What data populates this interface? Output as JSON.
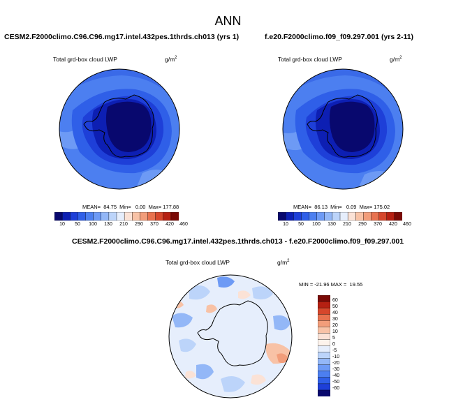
{
  "title": "ANN",
  "unit_base": "g/m",
  "unit_exp": "2",
  "panels": [
    {
      "case": "CESM2.F2000climo.C96.C96.mg17.intel.432pes.1thrds.ch013 (yrs 1)",
      "subtitle": "Total grd-box cloud LWP",
      "stats": "MEAN=  84.75  Min=   0.00  Max= 177.88"
    },
    {
      "case": "f.e20.F2000climo.f09_f09.297.001 (yrs 2-11)",
      "subtitle": "Total grd-box cloud LWP",
      "stats": "MEAN=  86.13  Min=   0.09  Max= 175.02"
    },
    {
      "case": "CESM2.F2000climo.C96.C96.mg17.intel.432pes.1thrds.ch013 - f.e20.F2000climo.f09_f09.297.001",
      "subtitle": "Total grd-box cloud LWP",
      "stats": "MIN = -21.96 MAX =  19.55"
    }
  ],
  "colorbar_main": {
    "labels": [
      "10",
      "50",
      "100",
      "130",
      "210",
      "290",
      "370",
      "420",
      "460"
    ],
    "colors": [
      "#08086e",
      "#0d1fb3",
      "#1e3fd8",
      "#2f5fe8",
      "#4c7ff0",
      "#6d9af5",
      "#93b7f7",
      "#bcd4fa",
      "#e6eefc",
      "#fbe2d6",
      "#f8c2a6",
      "#f29d7a",
      "#e8724f",
      "#d6472c",
      "#b52012",
      "#7a0a06"
    ]
  },
  "colorbar_diff": {
    "labels": [
      "60",
      "50",
      "40",
      "30",
      "20",
      "10",
      "5",
      "0",
      "-5",
      "-10",
      "-20",
      "-30",
      "-40",
      "-50",
      "-60"
    ],
    "colors": [
      "#7a0a06",
      "#b52012",
      "#d6472c",
      "#e8724f",
      "#f29d7a",
      "#f8c2a6",
      "#fbe2d6",
      "#fdf3ec",
      "#e6eefc",
      "#bcd4fa",
      "#93b7f7",
      "#6d9af5",
      "#4c7ff0",
      "#2f5fe8",
      "#1e3fd8",
      "#08086e"
    ]
  }
}
